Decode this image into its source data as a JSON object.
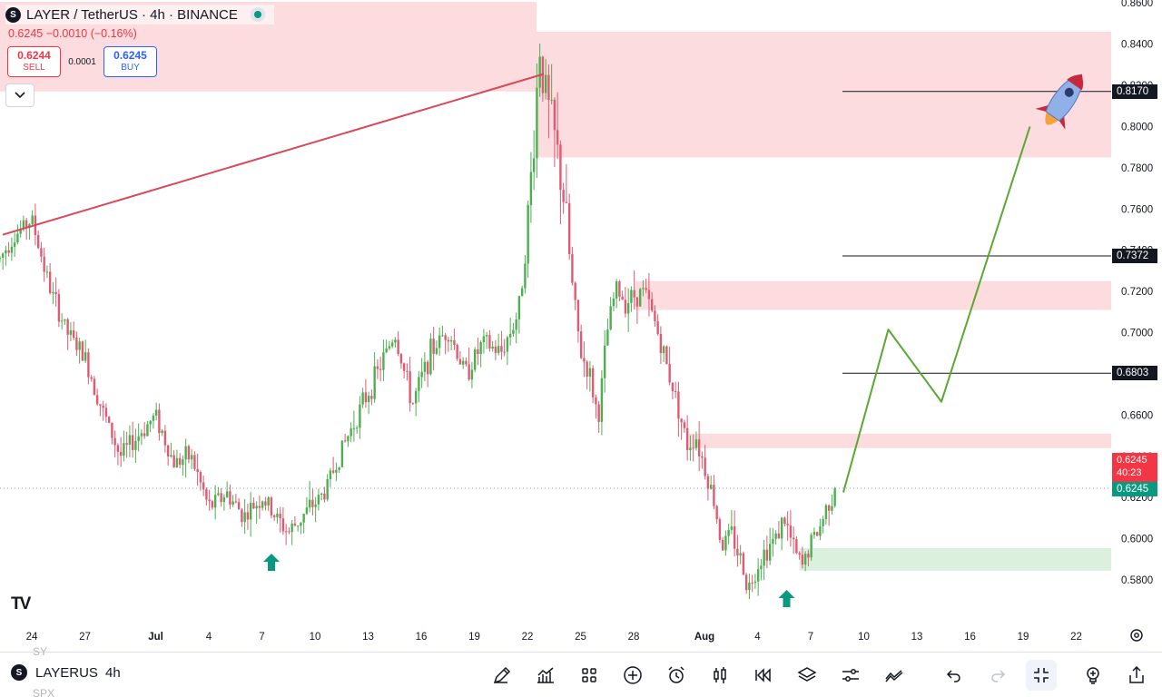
{
  "header": {
    "logo_letter": "S",
    "title": "LAYER / TetherUS · 4h · BINANCE",
    "change_text": "0.6245  −0.0010 (−0.16%)",
    "sell_price": "0.6244",
    "sell_label": "SELL",
    "spread": "0.0001",
    "buy_price": "0.6245",
    "buy_label": "BUY",
    "live_indicator_icon": "market-open-dot-icon"
  },
  "colors": {
    "up": "#4caf50",
    "down": "#e05a73",
    "zone_red": "#fbd0d3",
    "zone_green": "#d7f0da",
    "trendline": "#d94759",
    "projection": "#5aa832",
    "arrow": "#089981",
    "accent": "#2962ff"
  },
  "chart_data": {
    "type": "candlestick",
    "symbol": "LAYER / TetherUS",
    "timeframe": "4h",
    "exchange": "BINANCE",
    "y_ticks": [
      "0.8600",
      "0.8400",
      "0.8200",
      "0.8000",
      "0.7800",
      "0.7600",
      "0.7400",
      "0.7200",
      "0.7000",
      "0.6800",
      "0.6600",
      "0.6400",
      "0.6200",
      "0.6000",
      "0.5800"
    ],
    "x_ticks": [
      "24",
      "27",
      "Jul",
      "4",
      "7",
      "10",
      "13",
      "16",
      "19",
      "22",
      "25",
      "28",
      "Aug",
      "4",
      "7",
      "10",
      "13",
      "16",
      "19",
      "22"
    ],
    "ylim": [
      0.573,
      0.8605
    ],
    "current_price": 0.6245,
    "price_labels": [
      {
        "text": "0.8170",
        "price": 0.817
      },
      {
        "text": "0.7372",
        "price": 0.7372
      },
      {
        "text": "0.6803",
        "price": 0.6803
      }
    ],
    "current_label": {
      "price_text": "0.6245",
      "countdown": "40:23",
      "bid_text": "0.6245"
    },
    "zones": [
      {
        "color": "red",
        "from": 0.817,
        "to": 0.8605,
        "start": "left",
        "end": "22"
      },
      {
        "color": "red",
        "from": 0.785,
        "to": 0.846,
        "start": "22",
        "end": "right"
      },
      {
        "color": "red",
        "from": 0.711,
        "to": 0.725,
        "start": "28",
        "end": "right"
      },
      {
        "color": "red",
        "from": 0.644,
        "to": 0.651,
        "start": "Aug",
        "end": "right"
      },
      {
        "color": "green",
        "from": 0.5845,
        "to": 0.5955,
        "start": "6",
        "end": "right"
      }
    ],
    "trendline": [
      {
        "t": "23 Jun",
        "price": 0.7475
      },
      {
        "t": "22 Jul",
        "price": 0.8255
      }
    ],
    "projection_path": [
      {
        "t": "8 Aug",
        "price": 0.6225
      },
      {
        "t": "12 Aug",
        "price": 0.7015
      },
      {
        "t": "15 Aug",
        "price": 0.6665
      },
      {
        "t": "20 Aug",
        "price": 0.8
      }
    ],
    "markers": [
      {
        "type": "up-arrow",
        "t": "8 Jul",
        "price": 0.6
      },
      {
        "type": "up-arrow",
        "t": "6 Aug",
        "price": 0.58
      }
    ],
    "key_points": [
      {
        "t": "24 Jun",
        "price": 0.755,
        "note": "high"
      },
      {
        "t": "8 Jul",
        "price": 0.603,
        "note": "low"
      },
      {
        "t": "22 Jul",
        "price": 0.847,
        "note": "peak"
      },
      {
        "t": "26 Jul",
        "price": 0.658,
        "note": "low"
      },
      {
        "t": "27 Jul",
        "price": 0.7215,
        "note": "rebound"
      },
      {
        "t": "3 Aug",
        "price": 0.576,
        "note": "low"
      },
      {
        "t": "6 Aug",
        "price": 0.586,
        "note": "low"
      },
      {
        "t": "8 Aug",
        "price": 0.6245,
        "note": "last"
      }
    ],
    "grid": false
  },
  "toolbar": {
    "symbol": "LAYERUSDT",
    "symbol_display": "LAYERUS",
    "timeframe": "4h",
    "ghost_above": "SY",
    "ghost_below": "SPX",
    "icons": [
      "pencil-icon",
      "indicators-icon",
      "grid-icon",
      "plus-circle-icon",
      "alarm-icon",
      "candles-icon",
      "replay-icon",
      "layers-icon",
      "settings-sliders-icon",
      "trend-icon",
      "undo-icon",
      "redo-icon",
      "fullscreen-exit-icon",
      "bulb-icon",
      "share-icon"
    ]
  },
  "axis_settings_icon": "gear-icon",
  "brand_logo": "TV"
}
